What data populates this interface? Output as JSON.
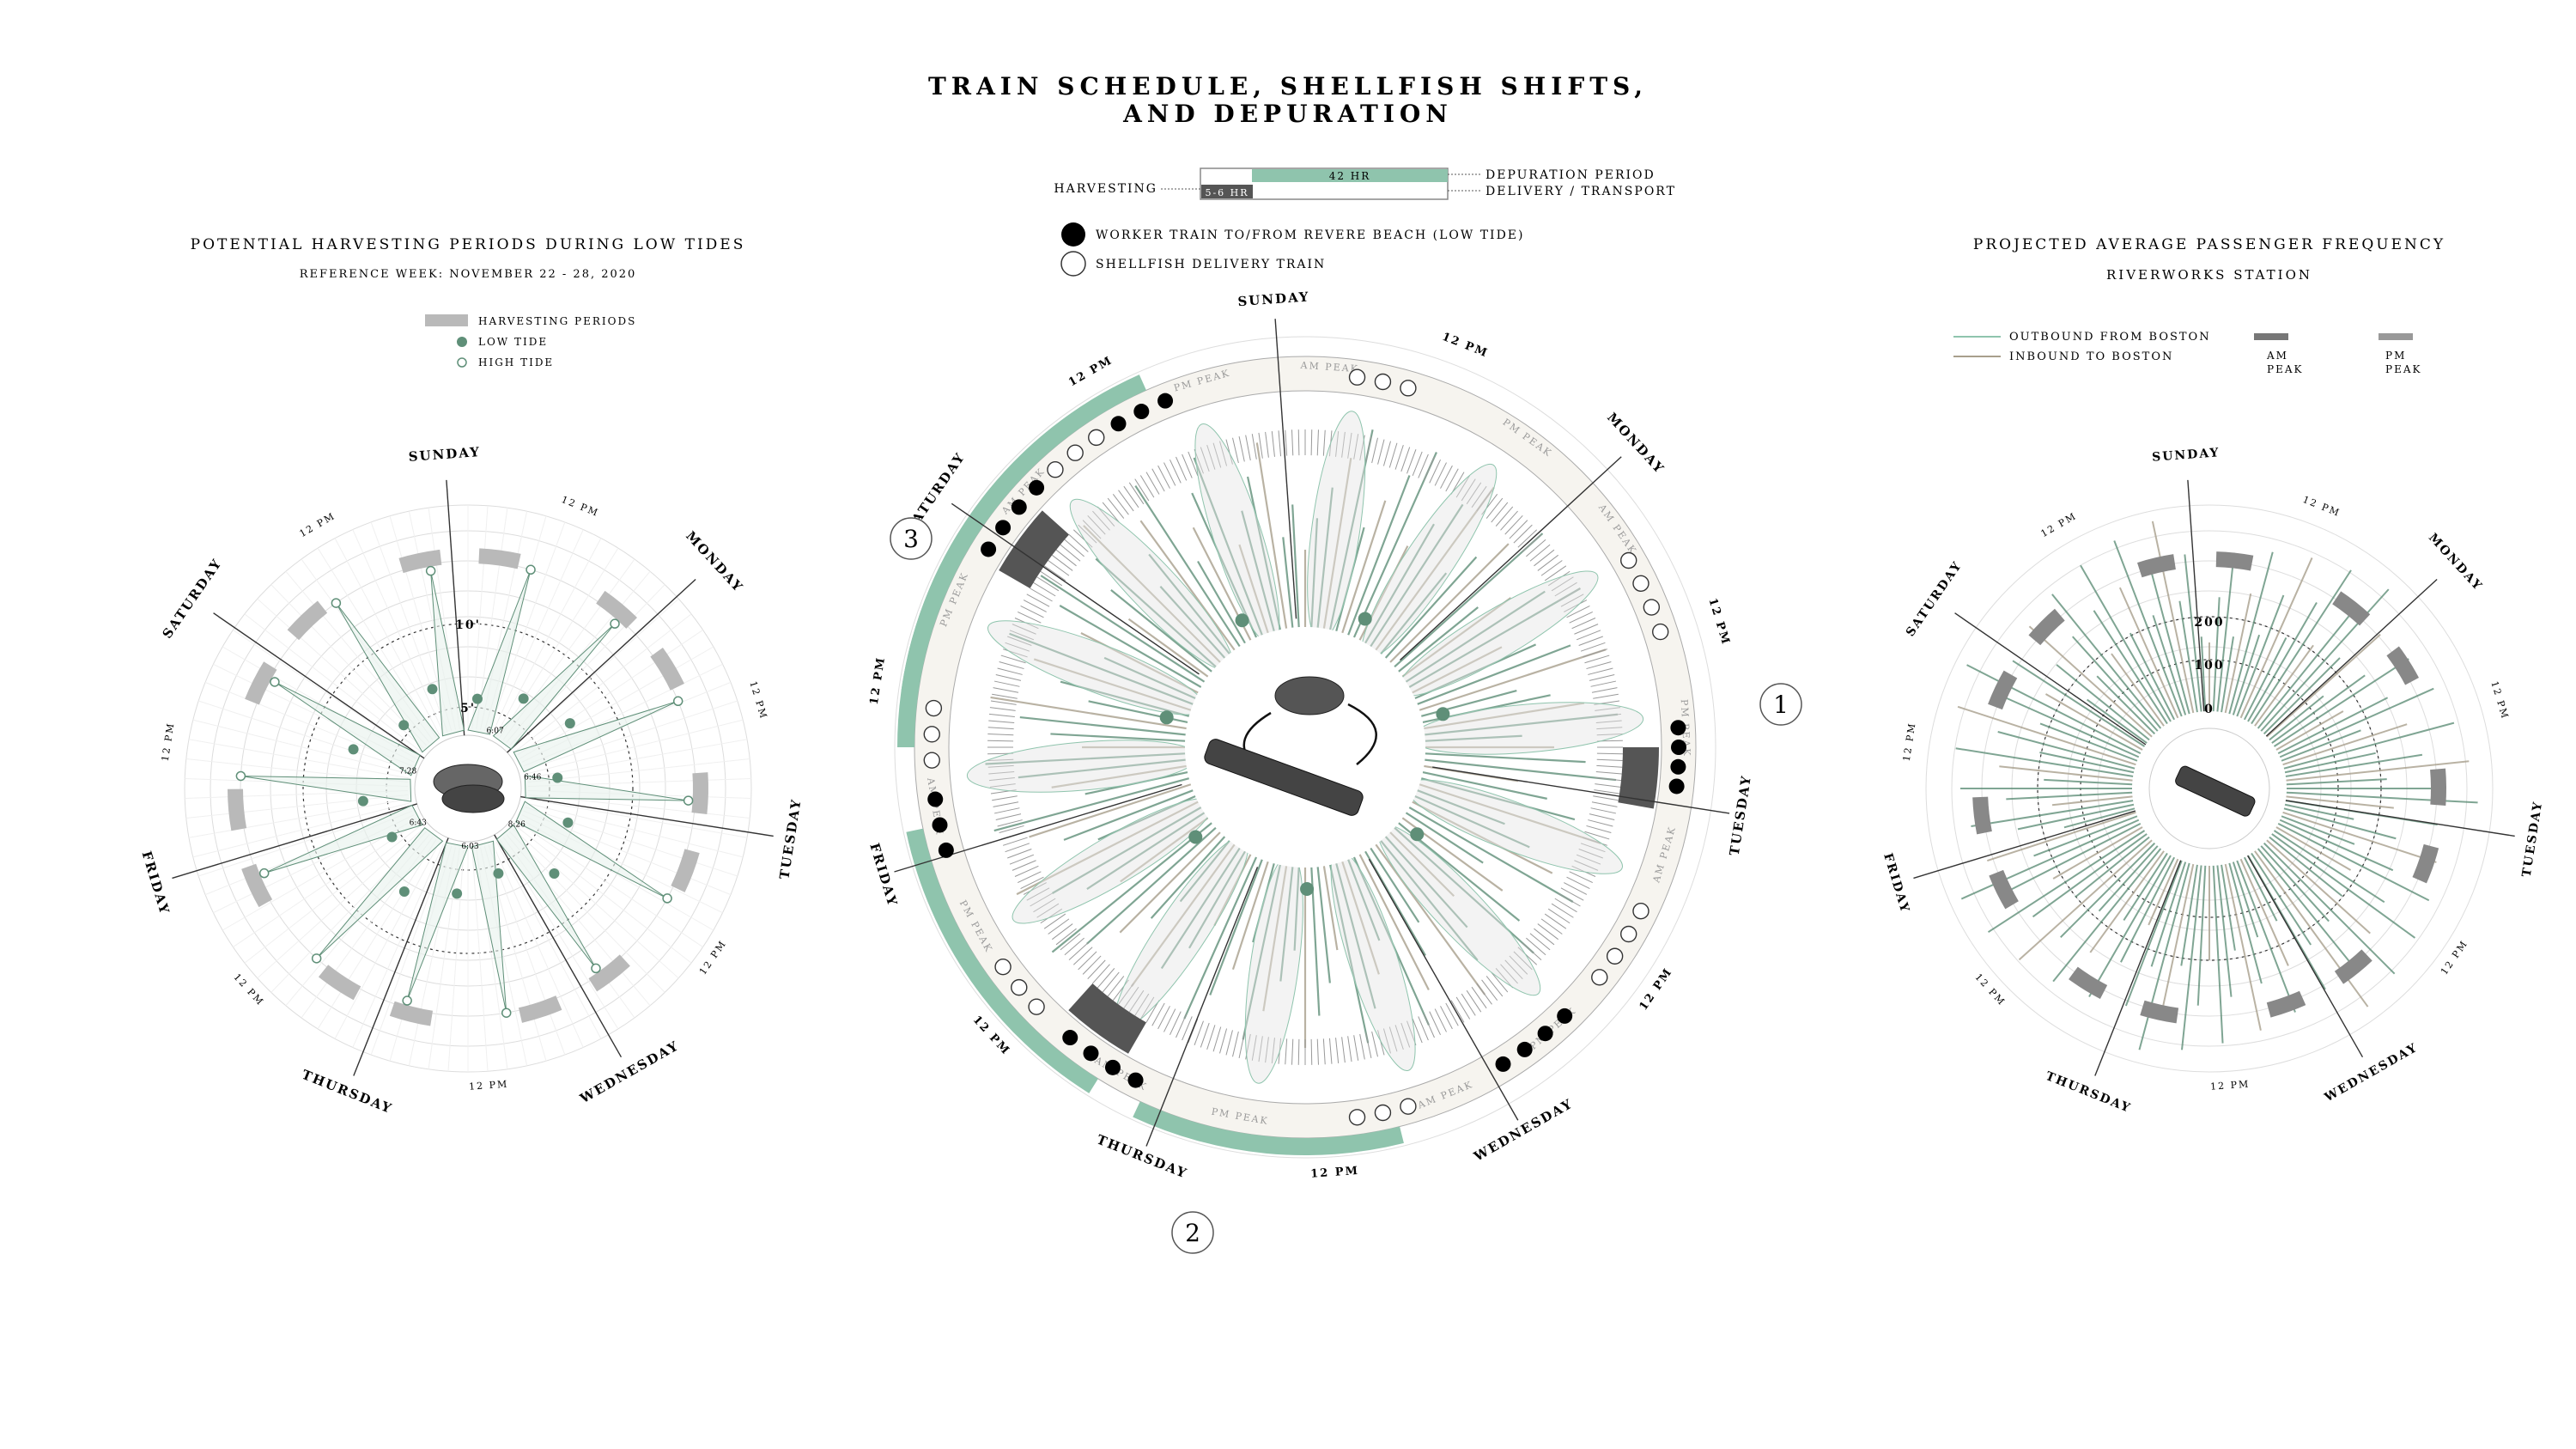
{
  "header": {
    "title_line1": "TRAIN SCHEDULE, SHELLFISH SHIFTS,",
    "title_line2": "AND DEPURATION"
  },
  "center_legend": {
    "bar_top_label": "42 HR",
    "bar_bottom_label": "5-6 HR",
    "harvesting": "HARVESTING",
    "depuration_period": "DEPURATION PERIOD",
    "delivery_transport": "DELIVERY / TRANSPORT",
    "worker_train": "WORKER TRAIN TO/FROM REVERE BEACH (LOW TIDE)",
    "delivery_train": "SHELLFISH DELIVERY TRAIN"
  },
  "left_panel": {
    "title": "POTENTIAL HARVESTING PERIODS DURING LOW TIDES",
    "subtitle": "REFERENCE WEEK: NOVEMBER 22 - 28, 2020",
    "legend_periods": "HARVESTING PERIODS",
    "legend_low": "LOW TIDE",
    "legend_high": "HIGH TIDE",
    "ring_10": "10'",
    "ring_5": "5'",
    "times": [
      "6:07",
      "6:46",
      "8:26",
      "6:03",
      "6:43",
      "7:28"
    ]
  },
  "right_panel": {
    "title": "PROJECTED AVERAGE PASSENGER FREQUENCY",
    "subtitle": "RIVERWORKS STATION",
    "legend_out": "OUTBOUND FROM BOSTON",
    "legend_in": "INBOUND TO BOSTON",
    "am": "AM",
    "pm": "PM",
    "peak": "PEAK",
    "ring_200": "200",
    "ring_100": "100",
    "ring_0": "0"
  },
  "days": [
    "SUNDAY",
    "MONDAY",
    "TUESDAY",
    "WEDNESDAY",
    "THURSDAY",
    "FRIDAY",
    "SATURDAY"
  ],
  "noon": "12 PM",
  "callouts": [
    "1",
    "2",
    "3"
  ],
  "peak_labels": {
    "am": "AM PEAK",
    "pm": "PM PEAK"
  },
  "colors": {
    "green": "#8fc4ad",
    "green_dark": "#5f8f78",
    "tan": "#a89f8c",
    "gray": "#b9b9b9",
    "dark": "#555555",
    "ring": "#f6f4ef"
  }
}
